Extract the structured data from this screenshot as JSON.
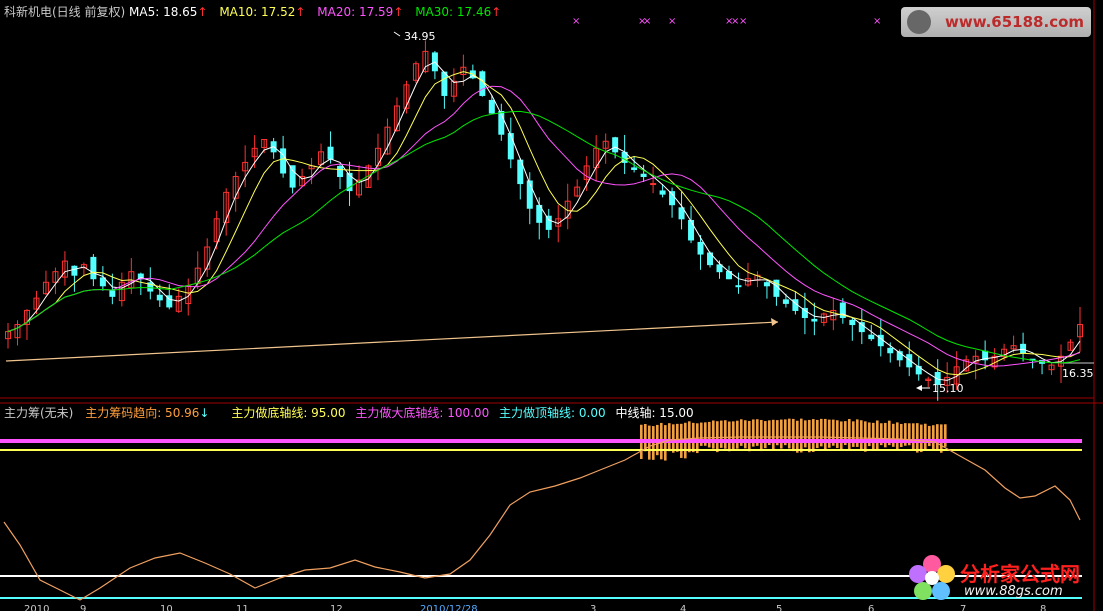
{
  "header": {
    "title": "科新机电(日线 前复权)",
    "ma5": "MA5: 18.65",
    "ma10": "MA10: 17.52",
    "ma20": "MA20: 17.59",
    "ma30": "MA30: 17.46",
    "up_arrow": "↑"
  },
  "indicator_header": {
    "name": "主力筹(无未)",
    "trend": "主力筹码趋向: 50.96",
    "down_arrow": "↓",
    "bottom_axis": "主力做底轴线: 95.00",
    "big_bottom_axis": "主力做大底轴线: 100.00",
    "top_axis": "主力做顶轴线: 0.00",
    "mid_axis": "中线轴: 15.00"
  },
  "price_labels": {
    "high": "34.95",
    "low": "15.10",
    "right_value": "16.35"
  },
  "x_axis_dates": [
    "2010",
    "9",
    "10",
    "11",
    "12",
    "2010/12/28",
    "3",
    "4",
    "5",
    "6",
    "7",
    "8"
  ],
  "watermarks": {
    "top": "www.65188.com",
    "bottom_cn": "分析家公式网",
    "bottom_url": "www.88gs.com"
  },
  "colors": {
    "up": "#ff3232",
    "down": "#54ffff",
    "ma5": "#ffffff",
    "ma10": "#ffff54",
    "ma20": "#ff54ff",
    "ma30": "#00e600",
    "trend_line": "#f0c48c",
    "bottom_axis": "#ffff54",
    "big_bottom_axis": "#ff54ff",
    "mid_axis": "#ffffff",
    "top_axis": "#54ffff",
    "bars": "#f0a040",
    "osc": "#f0a060"
  },
  "chart_data": {
    "type": "candlestick",
    "price_high": 34.95,
    "price_low": 15.1,
    "series": [
      {
        "name": "MA5",
        "value": 18.65
      },
      {
        "name": "MA10",
        "value": 17.52
      },
      {
        "name": "MA20",
        "value": 17.59
      },
      {
        "name": "MA30",
        "value": 17.46
      }
    ],
    "closes": [
      18.2,
      18.6,
      19.4,
      20.1,
      21.0,
      21.6,
      22.2,
      21.4,
      22.0,
      21.2,
      20.8,
      20.2,
      21.0,
      21.6,
      21.2,
      20.5,
      20.0,
      19.6,
      20.2,
      20.8,
      21.8,
      23.0,
      24.6,
      26.1,
      27.0,
      27.8,
      28.6,
      29.1,
      28.4,
      27.2,
      26.4,
      27.0,
      27.6,
      28.4,
      28.0,
      27.0,
      26.2,
      26.8,
      27.6,
      28.6,
      29.8,
      31.0,
      32.2,
      33.4,
      34.1,
      33.0,
      31.6,
      32.4,
      33.2,
      32.6,
      31.6,
      30.6,
      29.4,
      28.0,
      26.6,
      25.2,
      24.4,
      24.0,
      24.6,
      25.6,
      26.4,
      27.6,
      28.6,
      29.0,
      28.4,
      27.8,
      27.4,
      27.0,
      26.6,
      26.0,
      25.4,
      24.6,
      23.4,
      22.6,
      22.0,
      21.6,
      21.2,
      20.8,
      21.2,
      21.4,
      20.8,
      20.2,
      19.8,
      19.4,
      19.0,
      18.8,
      19.2,
      19.4,
      19.0,
      18.6,
      18.2,
      17.8,
      17.4,
      17.0,
      16.6,
      16.2,
      15.8,
      15.5,
      15.2,
      15.6,
      16.2,
      16.6,
      16.8,
      16.6,
      16.8,
      17.2,
      17.4,
      17.0,
      16.6,
      16.4,
      16.3,
      16.8,
      17.6,
      18.6
    ],
    "indicator": {
      "trend": 50.96,
      "bottom_axis": 95.0,
      "big_bottom_axis": 100.0,
      "top_axis": 0.0,
      "mid_axis": 15.0
    }
  }
}
